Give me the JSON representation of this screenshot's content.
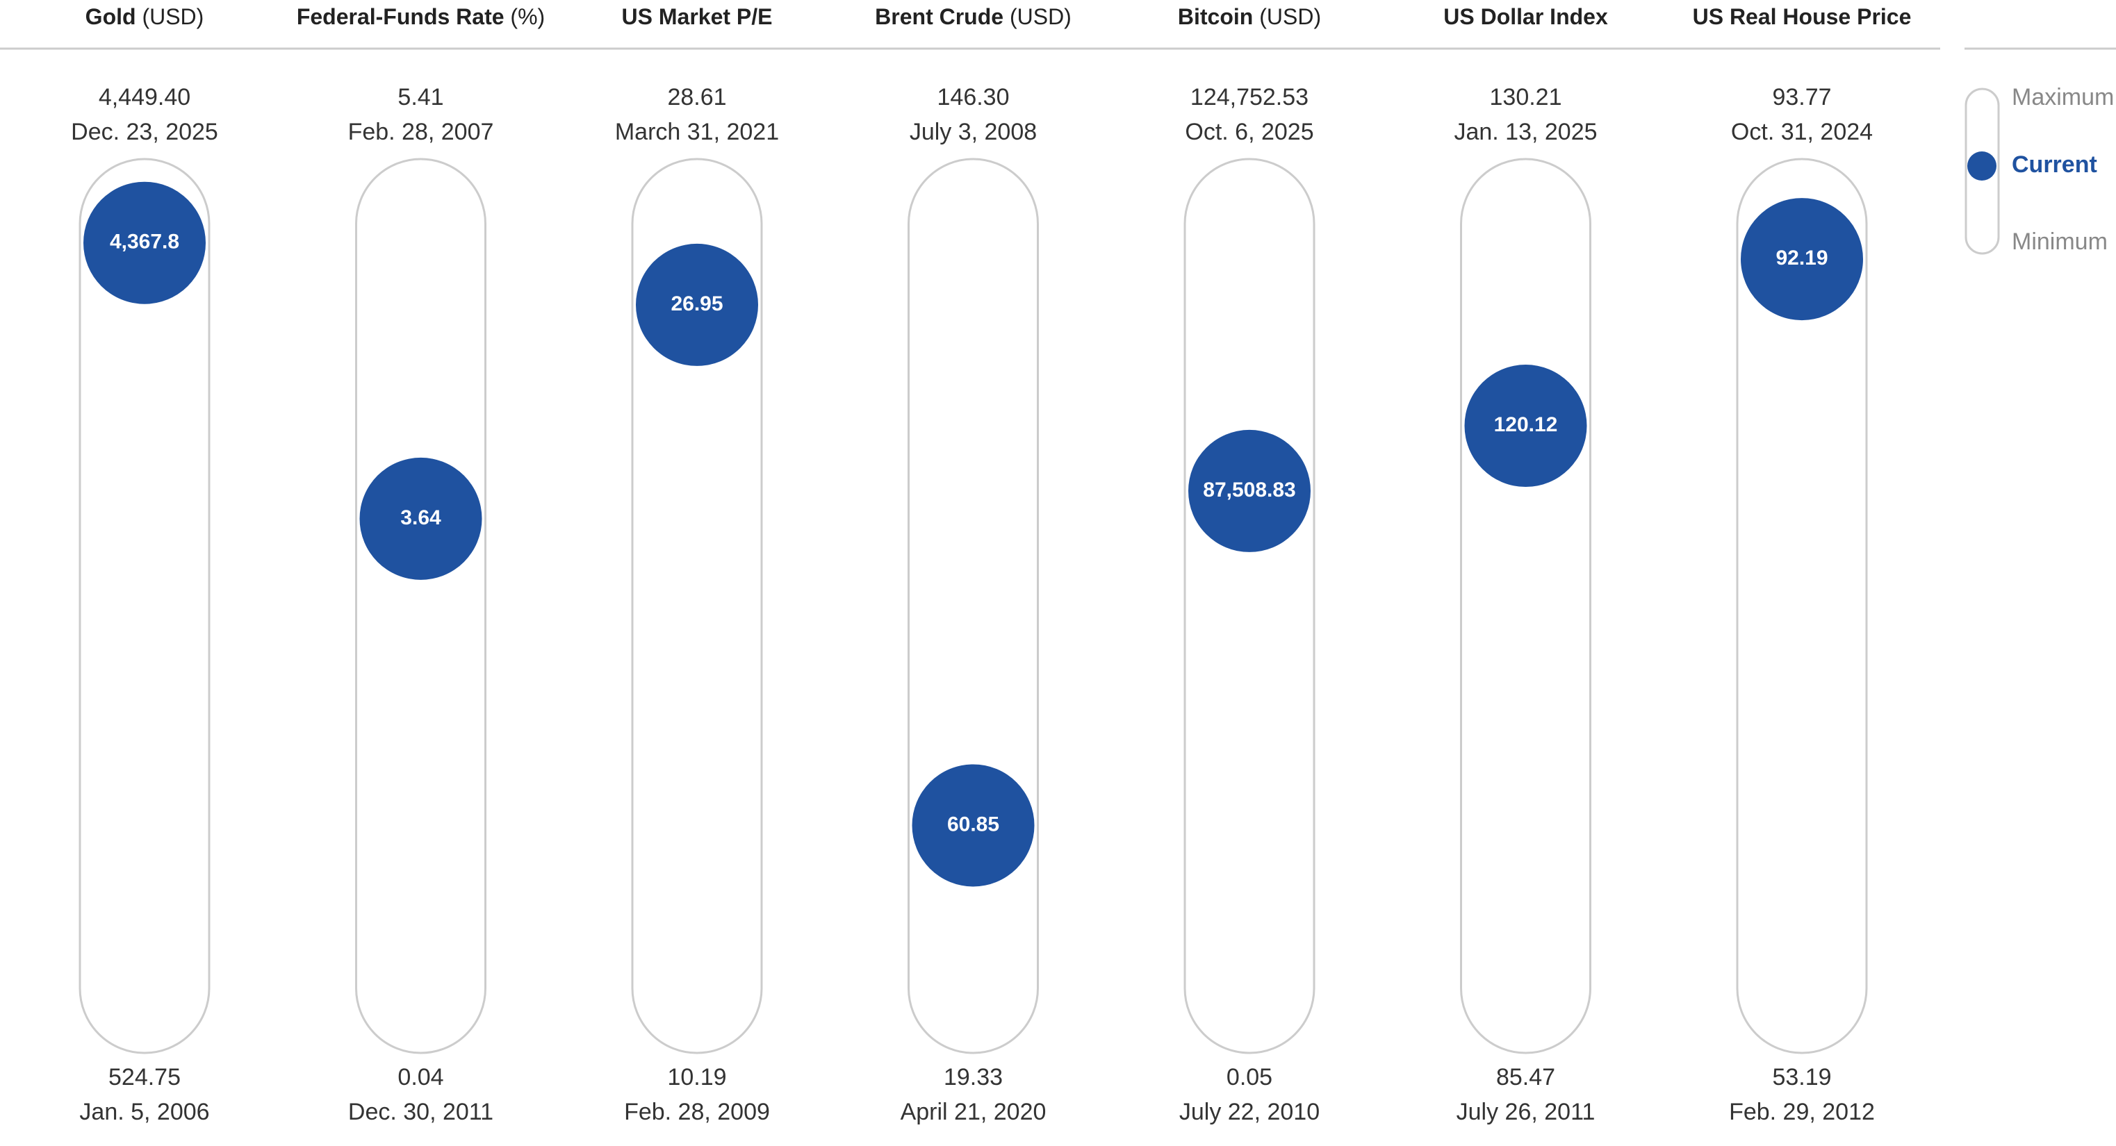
{
  "chart_data": {
    "type": "range",
    "color": "#1f52a0",
    "legend": {
      "max": "Maximum",
      "current": "Current",
      "min": "Minimum"
    },
    "columns": [
      {
        "name": "Gold",
        "unit": "(USD)",
        "max": {
          "value": 4449.4,
          "label": "4,449.40"
        },
        "max_date": "Dec. 23, 2025",
        "current": {
          "value": 4367.8,
          "label": "4,367.8"
        },
        "min": 524.75,
        "min_date": "Jan. 5, 2006"
      },
      {
        "name": "Federal-Funds Rate",
        "unit": "(%)",
        "max": 5.41,
        "max_date": "Feb. 28, 2007",
        "current": 3.64,
        "min": 0.04,
        "min_date": "Dec. 30, 2011"
      },
      {
        "name": "US Market P/E",
        "max": 28.61,
        "max_date": "March 31, 2021",
        "current": 26.95,
        "min": 10.19,
        "min_date": "Feb. 28, 2009"
      },
      {
        "name": "Brent Crude",
        "unit": "(USD)",
        "max": {
          "value": 146.3,
          "label": "146.30"
        },
        "max_date": "July 3, 2008",
        "current": 60.85,
        "min": 19.33,
        "min_date": "April 21, 2020"
      },
      {
        "name": "Bitcoin",
        "unit": "(USD)",
        "max": {
          "value": 124752.53,
          "label": "124,752.53"
        },
        "max_date": "Oct. 6, 2025",
        "current": {
          "value": 87508.83,
          "label": "87,508.83"
        },
        "min": 0.05,
        "min_date": "July 22, 2010"
      },
      {
        "name": "US Dollar Index",
        "max": 130.21,
        "max_date": "Jan. 13, 2025",
        "current": 120.12,
        "min": 85.47,
        "min_date": "July 26, 2011"
      },
      {
        "name": "US Real House Price",
        "max": 93.77,
        "max_date": "Oct. 31, 2024",
        "current": 92.19,
        "min": 53.19,
        "min_date": "Feb. 29, 2012"
      }
    ]
  }
}
